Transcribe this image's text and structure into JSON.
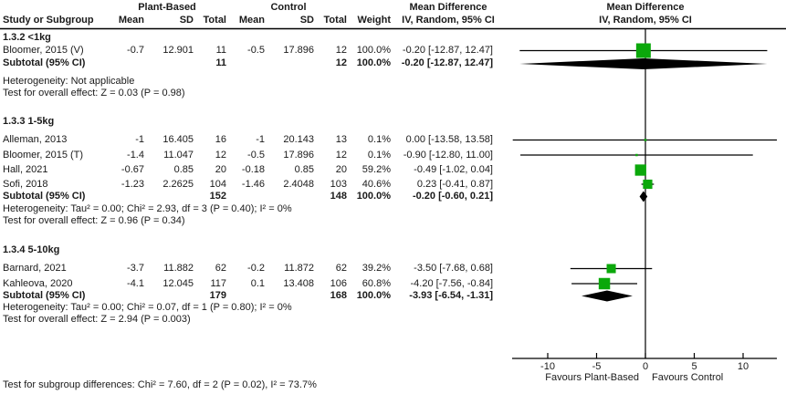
{
  "table": {
    "group_headers": [
      "Plant-Based",
      "Control"
    ],
    "col_study": "Study or Subgroup",
    "num_headers": [
      "Mean",
      "SD",
      "Total",
      "Mean",
      "SD",
      "Total",
      "Weight"
    ],
    "ci_text_header_line1": "Mean Difference",
    "ci_text_header_line2": "IV, Random, 95% CI",
    "plot_header_line1": "Mean Difference",
    "plot_header_line2": "IV, Random, 95% CI",
    "subtotal_label": "Subtotal (95% CI)"
  },
  "chart_data": {
    "type": "forest",
    "marker_color": "#0BA80B",
    "diamond_color": "#000000",
    "x_axis": {
      "ticks": [
        -10,
        -5,
        0,
        5,
        10
      ],
      "range": [
        -13.6,
        13.5
      ],
      "favours_left": "Favours Plant-Based",
      "favours_right": "Favours Control"
    },
    "sections": [
      {
        "title": "1.3.2 <1kg",
        "studies": [
          {
            "name": "Bloomer, 2015 (V)",
            "pb_mean": "-0.7",
            "pb_sd": "12.901",
            "pb_total": "11",
            "c_mean": "-0.5",
            "c_sd": "17.896",
            "c_total": "12",
            "weight": "100.0%",
            "md": -0.2,
            "ci_low": -12.87,
            "ci_high": 12.47,
            "ci_text": "-0.20 [-12.87, 12.47]"
          }
        ],
        "subtotal": {
          "pb_total": "11",
          "c_total": "12",
          "weight": "100.0%",
          "md": -0.2,
          "ci_low": -12.87,
          "ci_high": 12.47,
          "ci_text": "-0.20 [-12.87, 12.47]"
        },
        "heterogeneity": "Heterogeneity: Not applicable",
        "overall_effect": "Test for overall effect: Z = 0.03 (P = 0.98)"
      },
      {
        "title": "1.3.3 1-5kg",
        "studies": [
          {
            "name": "Alleman, 2013",
            "pb_mean": "-1",
            "pb_sd": "16.405",
            "pb_total": "16",
            "c_mean": "-1",
            "c_sd": "20.143",
            "c_total": "13",
            "weight": "0.1%",
            "md": 0.0,
            "ci_low": -13.58,
            "ci_high": 13.58,
            "ci_text": "0.00 [-13.58, 13.58]"
          },
          {
            "name": "Bloomer, 2015 (T)",
            "pb_mean": "-1.4",
            "pb_sd": "11.047",
            "pb_total": "12",
            "c_mean": "-0.5",
            "c_sd": "17.896",
            "c_total": "12",
            "weight": "0.1%",
            "md": -0.9,
            "ci_low": -12.8,
            "ci_high": 11.0,
            "ci_text": "-0.90 [-12.80, 11.00]"
          },
          {
            "name": "Hall, 2021",
            "pb_mean": "-0.67",
            "pb_sd": "0.85",
            "pb_total": "20",
            "c_mean": "-0.18",
            "c_sd": "0.85",
            "c_total": "20",
            "weight": "59.2%",
            "md": -0.49,
            "ci_low": -1.02,
            "ci_high": 0.04,
            "ci_text": "-0.49 [-1.02, 0.04]"
          },
          {
            "name": "Sofi, 2018",
            "pb_mean": "-1.23",
            "pb_sd": "2.2625",
            "pb_total": "104",
            "c_mean": "-1.46",
            "c_sd": "2.4048",
            "c_total": "103",
            "weight": "40.6%",
            "md": 0.23,
            "ci_low": -0.41,
            "ci_high": 0.87,
            "ci_text": "0.23 [-0.41, 0.87]"
          }
        ],
        "subtotal": {
          "pb_total": "152",
          "c_total": "148",
          "weight": "100.0%",
          "md": -0.2,
          "ci_low": -0.6,
          "ci_high": 0.21,
          "ci_text": "-0.20 [-0.60, 0.21]"
        },
        "heterogeneity": "Heterogeneity: Tau² = 0.00; Chi² = 2.93, df = 3 (P = 0.40); I² = 0%",
        "overall_effect": "Test for overall effect: Z = 0.96 (P = 0.34)"
      },
      {
        "title": "1.3.4 5-10kg",
        "studies": [
          {
            "name": "Barnard, 2021",
            "pb_mean": "-3.7",
            "pb_sd": "11.882",
            "pb_total": "62",
            "c_mean": "-0.2",
            "c_sd": "11.872",
            "c_total": "62",
            "weight": "39.2%",
            "md": -3.5,
            "ci_low": -7.68,
            "ci_high": 0.68,
            "ci_text": "-3.50 [-7.68, 0.68]"
          },
          {
            "name": "Kahleova, 2020",
            "pb_mean": "-4.1",
            "pb_sd": "12.045",
            "pb_total": "117",
            "c_mean": "0.1",
            "c_sd": "13.408",
            "c_total": "106",
            "weight": "60.8%",
            "md": -4.2,
            "ci_low": -7.56,
            "ci_high": -0.84,
            "ci_text": "-4.20 [-7.56, -0.84]"
          }
        ],
        "subtotal": {
          "pb_total": "179",
          "c_total": "168",
          "weight": "100.0%",
          "md": -3.93,
          "ci_low": -6.54,
          "ci_high": -1.31,
          "ci_text": "-3.93 [-6.54, -1.31]"
        },
        "heterogeneity": "Heterogeneity: Tau² = 0.00; Chi² = 0.07, df = 1 (P = 0.80); I² = 0%",
        "overall_effect": "Test for overall effect: Z = 2.94 (P = 0.003)"
      }
    ],
    "footer": "Test for subgroup differences: Chi² = 7.60, df = 2 (P = 0.02), I² = 73.7%"
  }
}
